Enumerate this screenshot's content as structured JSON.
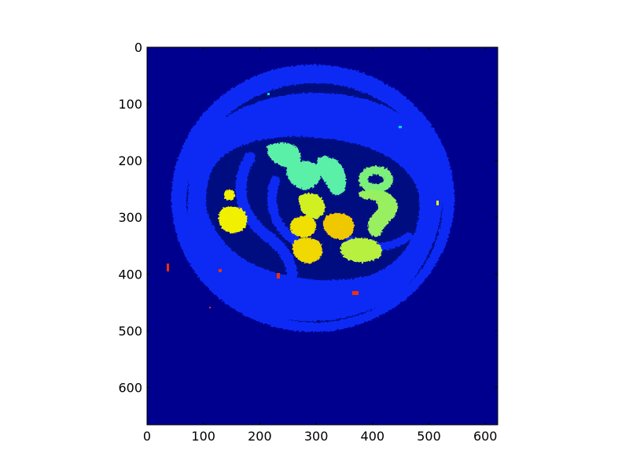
{
  "figure": {
    "type": "image-plot",
    "description_colormap": "jet",
    "colors": {
      "background": "#00008f",
      "ring": "#0a2cf5",
      "dark_gap": "#000a80",
      "teal": "#5af0a8",
      "lime": "#b8f040",
      "yellow": "#f0f000",
      "red": "#f03000",
      "cyan": "#00d8e8"
    }
  },
  "axes": {
    "x": {
      "min": 0,
      "max": 622,
      "ticks": [
        "0",
        "100",
        "200",
        "300",
        "400",
        "500",
        "600"
      ]
    },
    "y": {
      "min": 0,
      "max": 666,
      "inverted": true,
      "ticks": [
        "0",
        "100",
        "200",
        "300",
        "400",
        "500",
        "600"
      ]
    }
  }
}
